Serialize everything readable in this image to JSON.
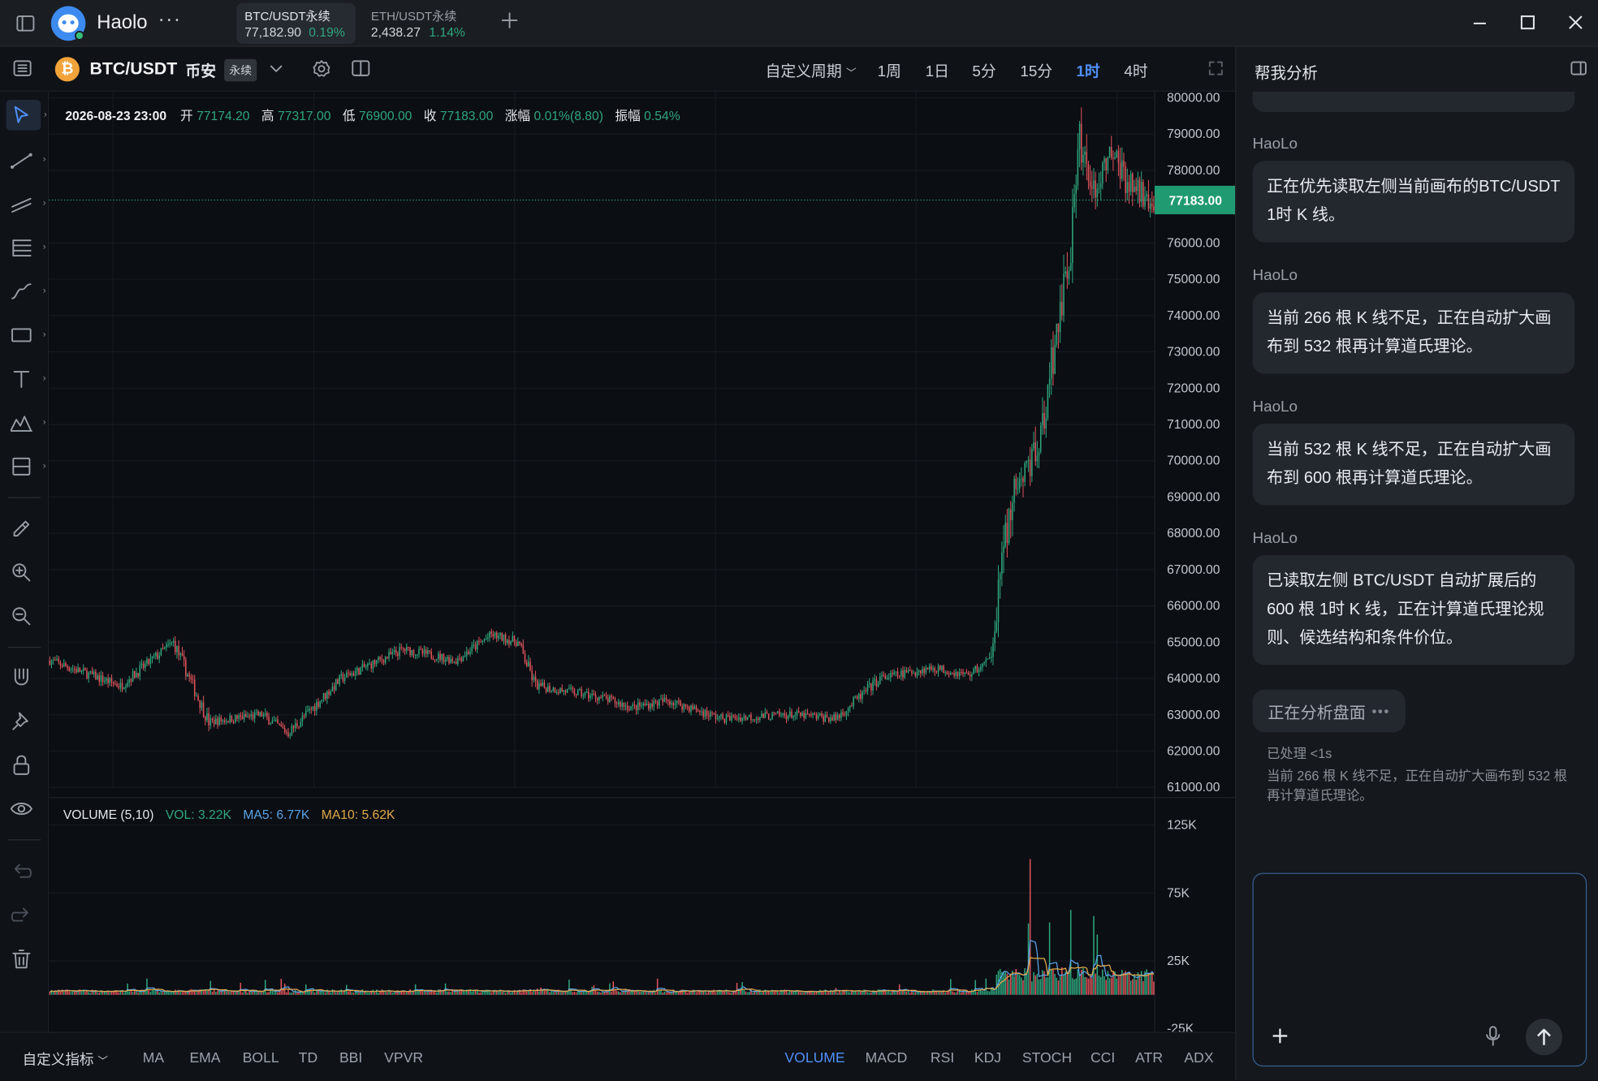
{
  "app": {
    "name": "Haolo"
  },
  "tabs": [
    {
      "symbol": "BTC/USDT永续",
      "price": "77,182.90",
      "change": "0.19%"
    },
    {
      "symbol": "ETH/USDT永续",
      "price": "2,438.27",
      "change": "1.14%"
    }
  ],
  "toolbar": {
    "symbol": "BTC/USDT",
    "exchange": "币安",
    "contract": "永续",
    "custom_period": "自定义周期",
    "periods": [
      "1周",
      "1日",
      "5分",
      "15分",
      "1时",
      "4时"
    ],
    "active_period": "1时"
  },
  "ohlc": {
    "datetime": "2026-08-23 23:00",
    "open_label": "开",
    "open": "77174.20",
    "high_label": "高",
    "high": "77317.00",
    "low_label": "低",
    "low": "76900.00",
    "close_label": "收",
    "close": "77183.00",
    "change_label": "涨幅",
    "change": "0.01%(8.80)",
    "amp_label": "振幅",
    "amp": "0.54%"
  },
  "price_axis": {
    "ticks": [
      "80000.00",
      "79000.00",
      "78000.00",
      "76000.00",
      "75000.00",
      "74000.00",
      "73000.00",
      "72000.00",
      "71000.00",
      "70000.00",
      "69000.00",
      "68000.00",
      "67000.00",
      "66000.00",
      "65000.00",
      "64000.00",
      "63000.00",
      "62000.00",
      "61000.00"
    ],
    "current": "77183.00"
  },
  "volume": {
    "title": "VOLUME (5,10)",
    "vol": "VOL: 3.22K",
    "ma5": "MA5: 6.77K",
    "ma10": "MA10: 5.62K",
    "ticks": [
      "125K",
      "75K",
      "25K",
      "-25K"
    ]
  },
  "indicators": {
    "custom": "自定义指标",
    "main": [
      "MA",
      "EMA",
      "BOLL",
      "TD",
      "BBI",
      "VPVR"
    ],
    "sub": [
      "VOLUME",
      "MACD",
      "RSI",
      "KDJ",
      "STOCH",
      "CCI",
      "ATR",
      "ADX"
    ],
    "active": "VOLUME"
  },
  "panel": {
    "title": "帮我分析",
    "messages": [
      {
        "sender": "HaoLo",
        "text": "正在优先读取左侧当前画布的BTC/USDT 1时 K 线。"
      },
      {
        "sender": "HaoLo",
        "text": "当前 266 根 K 线不足，正在自动扩大画布到 532 根再计算道氏理论。"
      },
      {
        "sender": "HaoLo",
        "text": "当前 532 根 K 线不足，正在自动扩大画布到 600 根再计算道氏理论。"
      },
      {
        "sender": "HaoLo",
        "text": "已读取左侧 BTC/USDT 自动扩展后的 600 根 1时 K 线，正在计算道氏理论规则、候选结构和条件价位。"
      }
    ],
    "status": "正在分析盘面",
    "processed": "已处理 <1s",
    "detail": "当前 266 根 K 线不足，正在自动扩大画布到 532 根再计算道氏理论。"
  },
  "colors": {
    "up": "#2fa67d",
    "down": "#e0535c",
    "accent": "#4f8ff7",
    "ma5": "#5aa3e8",
    "ma10": "#e0a94a"
  },
  "chart_data": {
    "type": "candlestick",
    "series": [
      {
        "name": "BTC/USDT 1时",
        "anchors": [
          [
            0,
            64500
          ],
          [
            40,
            63800
          ],
          [
            70,
            65000
          ],
          [
            90,
            62800
          ],
          [
            120,
            63000
          ],
          [
            135,
            62500
          ],
          [
            165,
            64000
          ],
          [
            200,
            64800
          ],
          [
            230,
            64500
          ],
          [
            250,
            65200
          ],
          [
            265,
            65000
          ],
          [
            275,
            63800
          ],
          [
            310,
            63500
          ],
          [
            330,
            63200
          ],
          [
            350,
            63400
          ],
          [
            380,
            62900
          ],
          [
            420,
            63000
          ],
          [
            445,
            62900
          ],
          [
            470,
            64000
          ],
          [
            500,
            64300
          ],
          [
            520,
            64100
          ],
          [
            532,
            64500
          ],
          [
            540,
            67500
          ],
          [
            545,
            69000
          ],
          [
            560,
            70500
          ],
          [
            570,
            73500
          ],
          [
            577,
            75500
          ],
          [
            583,
            79000
          ],
          [
            590,
            77200
          ],
          [
            600,
            78500
          ],
          [
            610,
            77700
          ],
          [
            625,
            77183
          ]
        ]
      },
      {
        "name": "VOLUME"
      }
    ],
    "ylim": [
      61000,
      80000
    ],
    "volume_ylim": [
      -25000,
      125000
    ]
  }
}
